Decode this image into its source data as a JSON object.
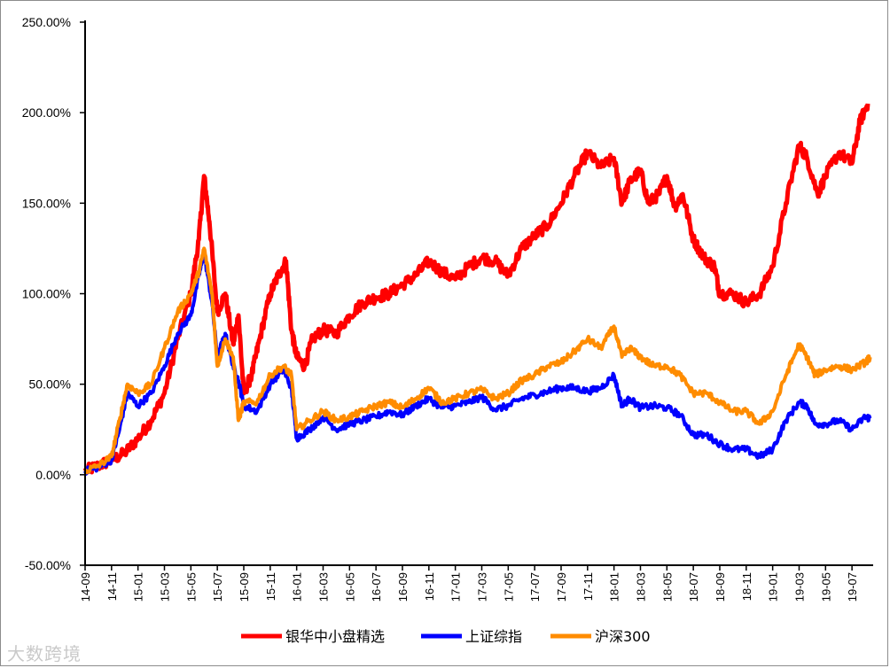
{
  "watermark": {
    "text": "大数跨境"
  },
  "chart_data": {
    "type": "line",
    "title": "",
    "xlabel": "",
    "ylabel": "",
    "ylim": [
      -50,
      250
    ],
    "y_ticks": [
      -50,
      0,
      50,
      100,
      150,
      200,
      250
    ],
    "y_tick_labels": [
      "-50.00%",
      "0.00%",
      "50.00%",
      "100.00%",
      "150.00%",
      "200.00%",
      "250.00%"
    ],
    "x_tick_labels": [
      "14-09",
      "14-11",
      "15-01",
      "15-03",
      "15-05",
      "15-07",
      "15-09",
      "15-11",
      "16-01",
      "16-03",
      "16-05",
      "16-07",
      "16-09",
      "16-11",
      "17-01",
      "17-03",
      "17-05",
      "17-07",
      "17-09",
      "17-11",
      "18-01",
      "18-03",
      "18-05",
      "18-07",
      "18-09",
      "18-11",
      "19-01",
      "19-03",
      "19-05",
      "19-07"
    ],
    "grid": false,
    "legend_position": "bottom",
    "series": [
      {
        "name": "银华中小盘精选",
        "color": "#ff0000",
        "points": [
          [
            0,
            2
          ],
          [
            0.5,
            5
          ],
          [
            1,
            8
          ],
          [
            1.5,
            12
          ],
          [
            2,
            20
          ],
          [
            2.5,
            30
          ],
          [
            3,
            45
          ],
          [
            3.5,
            75
          ],
          [
            4,
            100
          ],
          [
            4.3,
            130
          ],
          [
            4.5,
            165
          ],
          [
            4.7,
            140
          ],
          [
            5,
            90
          ],
          [
            5.3,
            100
          ],
          [
            5.6,
            72
          ],
          [
            5.8,
            88
          ],
          [
            6,
            45
          ],
          [
            6.3,
            55
          ],
          [
            6.6,
            75
          ],
          [
            7,
            100
          ],
          [
            7.3,
            110
          ],
          [
            7.6,
            118
          ],
          [
            7.8,
            80
          ],
          [
            8,
            65
          ],
          [
            8.3,
            60
          ],
          [
            8.6,
            75
          ],
          [
            9,
            80
          ],
          [
            9.5,
            78
          ],
          [
            10,
            88
          ],
          [
            10.5,
            95
          ],
          [
            11,
            98
          ],
          [
            11.5,
            100
          ],
          [
            12,
            105
          ],
          [
            12.5,
            110
          ],
          [
            13,
            118
          ],
          [
            13.5,
            112
          ],
          [
            14,
            108
          ],
          [
            14.5,
            115
          ],
          [
            15,
            120
          ],
          [
            15.5,
            118
          ],
          [
            16,
            110
          ],
          [
            16.5,
            125
          ],
          [
            17,
            132
          ],
          [
            17.5,
            138
          ],
          [
            18,
            150
          ],
          [
            18.5,
            165
          ],
          [
            19,
            178
          ],
          [
            19.5,
            170
          ],
          [
            20,
            175
          ],
          [
            20.3,
            150
          ],
          [
            20.6,
            162
          ],
          [
            21,
            168
          ],
          [
            21.3,
            150
          ],
          [
            21.7,
            155
          ],
          [
            22,
            165
          ],
          [
            22.3,
            148
          ],
          [
            22.6,
            155
          ],
          [
            23,
            130
          ],
          [
            23.4,
            120
          ],
          [
            23.8,
            115
          ],
          [
            24,
            100
          ],
          [
            24.5,
            100
          ],
          [
            25,
            95
          ],
          [
            25.5,
            100
          ],
          [
            26,
            115
          ],
          [
            26.5,
            150
          ],
          [
            27,
            182
          ],
          [
            27.3,
            175
          ],
          [
            27.7,
            155
          ],
          [
            28,
            165
          ],
          [
            28.5,
            178
          ],
          [
            29,
            172
          ],
          [
            29.3,
            195
          ],
          [
            29.6,
            205
          ]
        ]
      },
      {
        "name": "上证综指",
        "color": "#0000ff",
        "points": [
          [
            0,
            2
          ],
          [
            0.5,
            4
          ],
          [
            1,
            8
          ],
          [
            1.3,
            25
          ],
          [
            1.6,
            45
          ],
          [
            2,
            38
          ],
          [
            2.5,
            45
          ],
          [
            3,
            60
          ],
          [
            3.5,
            78
          ],
          [
            4,
            88
          ],
          [
            4.3,
            110
          ],
          [
            4.5,
            122
          ],
          [
            4.8,
            95
          ],
          [
            5,
            65
          ],
          [
            5.3,
            78
          ],
          [
            5.6,
            60
          ],
          [
            5.8,
            52
          ],
          [
            6,
            38
          ],
          [
            6.5,
            35
          ],
          [
            7,
            50
          ],
          [
            7.5,
            58
          ],
          [
            7.8,
            48
          ],
          [
            8,
            20
          ],
          [
            8.5,
            25
          ],
          [
            9,
            32
          ],
          [
            9.5,
            25
          ],
          [
            10,
            28
          ],
          [
            10.5,
            30
          ],
          [
            11,
            32
          ],
          [
            11.5,
            35
          ],
          [
            12,
            33
          ],
          [
            12.5,
            38
          ],
          [
            13,
            42
          ],
          [
            13.5,
            37
          ],
          [
            14,
            38
          ],
          [
            14.5,
            40
          ],
          [
            15,
            43
          ],
          [
            15.5,
            36
          ],
          [
            16,
            38
          ],
          [
            16.5,
            42
          ],
          [
            17,
            44
          ],
          [
            17.5,
            46
          ],
          [
            18,
            48
          ],
          [
            18.5,
            48
          ],
          [
            19,
            46
          ],
          [
            19.5,
            48
          ],
          [
            20,
            55
          ],
          [
            20.3,
            38
          ],
          [
            20.6,
            42
          ],
          [
            21,
            37
          ],
          [
            21.5,
            38
          ],
          [
            22,
            37
          ],
          [
            22.5,
            33
          ],
          [
            23,
            22
          ],
          [
            23.5,
            22
          ],
          [
            24,
            17
          ],
          [
            24.5,
            14
          ],
          [
            25,
            14
          ],
          [
            25.5,
            10
          ],
          [
            26,
            14
          ],
          [
            26.5,
            30
          ],
          [
            27,
            40
          ],
          [
            27.3,
            38
          ],
          [
            27.6,
            28
          ],
          [
            28,
            28
          ],
          [
            28.5,
            30
          ],
          [
            29,
            25
          ],
          [
            29.5,
            32
          ],
          [
            29.7,
            31
          ]
        ]
      },
      {
        "name": "沪深300",
        "color": "#ff8c00",
        "points": [
          [
            0,
            2
          ],
          [
            0.5,
            5
          ],
          [
            1,
            10
          ],
          [
            1.3,
            30
          ],
          [
            1.6,
            50
          ],
          [
            2,
            45
          ],
          [
            2.5,
            50
          ],
          [
            3,
            70
          ],
          [
            3.5,
            90
          ],
          [
            4,
            100
          ],
          [
            4.3,
            112
          ],
          [
            4.5,
            125
          ],
          [
            4.8,
            100
          ],
          [
            5,
            60
          ],
          [
            5.3,
            75
          ],
          [
            5.6,
            65
          ],
          [
            5.8,
            30
          ],
          [
            6,
            40
          ],
          [
            6.5,
            40
          ],
          [
            7,
            55
          ],
          [
            7.5,
            60
          ],
          [
            7.8,
            55
          ],
          [
            8,
            25
          ],
          [
            8.5,
            30
          ],
          [
            9,
            35
          ],
          [
            9.5,
            30
          ],
          [
            10,
            32
          ],
          [
            10.5,
            35
          ],
          [
            11,
            38
          ],
          [
            11.5,
            40
          ],
          [
            12,
            37
          ],
          [
            12.5,
            42
          ],
          [
            13,
            48
          ],
          [
            13.5,
            40
          ],
          [
            14,
            42
          ],
          [
            14.5,
            45
          ],
          [
            15,
            47
          ],
          [
            15.5,
            42
          ],
          [
            16,
            45
          ],
          [
            16.5,
            52
          ],
          [
            17,
            55
          ],
          [
            17.5,
            60
          ],
          [
            18,
            62
          ],
          [
            18.5,
            68
          ],
          [
            19,
            75
          ],
          [
            19.5,
            70
          ],
          [
            20,
            82
          ],
          [
            20.3,
            65
          ],
          [
            20.6,
            70
          ],
          [
            21,
            65
          ],
          [
            21.5,
            60
          ],
          [
            22,
            60
          ],
          [
            22.5,
            55
          ],
          [
            23,
            45
          ],
          [
            23.5,
            45
          ],
          [
            24,
            40
          ],
          [
            24.5,
            35
          ],
          [
            25,
            35
          ],
          [
            25.5,
            28
          ],
          [
            26,
            35
          ],
          [
            26.5,
            55
          ],
          [
            27,
            72
          ],
          [
            27.3,
            65
          ],
          [
            27.6,
            55
          ],
          [
            28,
            58
          ],
          [
            28.5,
            60
          ],
          [
            29,
            58
          ],
          [
            29.5,
            62
          ],
          [
            29.7,
            65
          ]
        ]
      }
    ]
  }
}
